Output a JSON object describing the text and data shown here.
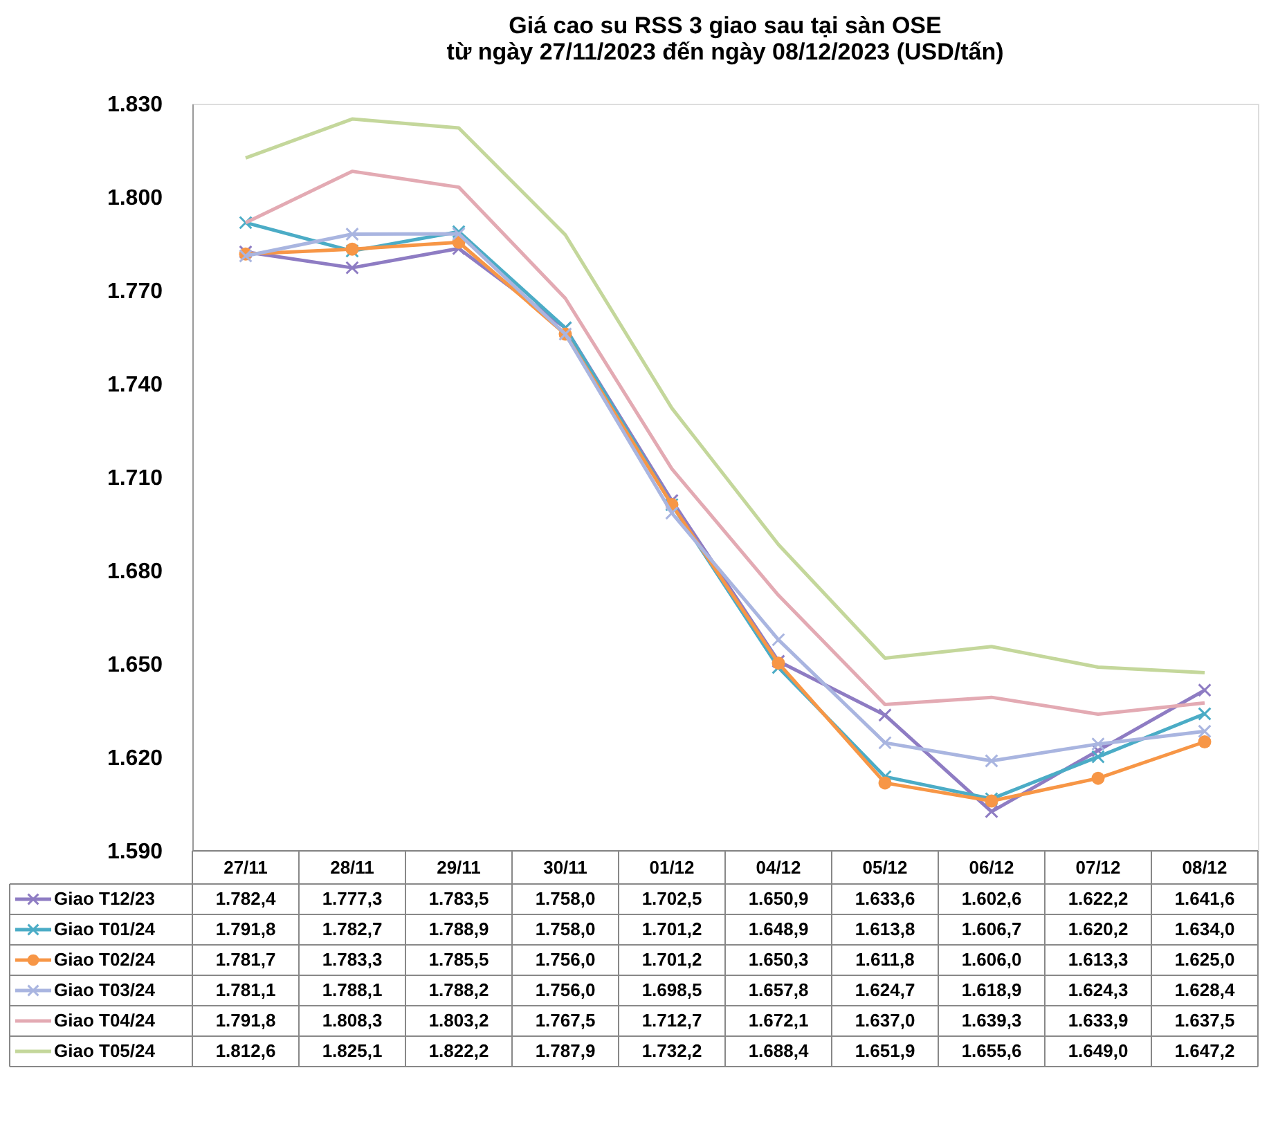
{
  "chart_data": {
    "type": "line",
    "title": "Giá cao su RSS 3 giao sau tại sàn OSE",
    "subtitle": "từ ngày 27/11/2023 đến ngày 08/12/2023 (USD/tấn)",
    "categories": [
      "27/11",
      "28/11",
      "29/11",
      "30/11",
      "01/12",
      "04/12",
      "05/12",
      "06/12",
      "07/12",
      "08/12"
    ],
    "ylim": [
      1590,
      1830
    ],
    "yticks": [
      {
        "value": 1590,
        "label": "1.590"
      },
      {
        "value": 1620,
        "label": "1.620"
      },
      {
        "value": 1650,
        "label": "1.650"
      },
      {
        "value": 1680,
        "label": "1.680"
      },
      {
        "value": 1710,
        "label": "1.710"
      },
      {
        "value": 1740,
        "label": "1.740"
      },
      {
        "value": 1770,
        "label": "1.770"
      },
      {
        "value": 1800,
        "label": "1.800"
      },
      {
        "value": 1830,
        "label": "1.830"
      }
    ],
    "grid": false,
    "legend": "bottom",
    "line_style": "solid",
    "series": [
      {
        "name": "Giao T12/23",
        "color": "#8e7cc3",
        "marker": "cross",
        "values": [
          1782.4,
          1777.3,
          1783.5,
          1758.0,
          1702.5,
          1650.9,
          1633.6,
          1602.6,
          1622.2,
          1641.6
        ],
        "value_labels": [
          "1.782,4",
          "1.777,3",
          "1.783,5",
          "1.758,0",
          "1.702,5",
          "1.650,9",
          "1.633,6",
          "1.602,6",
          "1.622,2",
          "1.641,6"
        ]
      },
      {
        "name": "Giao T01/24",
        "color": "#4bacc6",
        "marker": "cross",
        "values": [
          1791.8,
          1782.7,
          1788.9,
          1758.0,
          1701.2,
          1648.9,
          1613.8,
          1606.7,
          1620.2,
          1634.0
        ],
        "value_labels": [
          "1.791,8",
          "1.782,7",
          "1.788,9",
          "1.758,0",
          "1.701,2",
          "1.648,9",
          "1.613,8",
          "1.606,7",
          "1.620,2",
          "1.634,0"
        ]
      },
      {
        "name": "Giao T02/24",
        "color": "#f79646",
        "marker": "circle",
        "values": [
          1781.7,
          1783.3,
          1785.5,
          1756.0,
          1701.2,
          1650.3,
          1611.8,
          1606.0,
          1613.3,
          1625.0
        ],
        "value_labels": [
          "1.781,7",
          "1.783,3",
          "1.785,5",
          "1.756,0",
          "1.701,2",
          "1.650,3",
          "1.611,8",
          "1.606,0",
          "1.613,3",
          "1.625,0"
        ]
      },
      {
        "name": "Giao T03/24",
        "color": "#a9b5e0",
        "marker": "cross",
        "values": [
          1781.1,
          1788.1,
          1788.2,
          1756.0,
          1698.5,
          1657.8,
          1624.7,
          1618.9,
          1624.3,
          1628.4
        ],
        "value_labels": [
          "1.781,1",
          "1.788,1",
          "1.788,2",
          "1.756,0",
          "1.698,5",
          "1.657,8",
          "1.624,7",
          "1.618,9",
          "1.624,3",
          "1.628,4"
        ]
      },
      {
        "name": "Giao T04/24",
        "color": "#e3aab3",
        "marker": "none",
        "values": [
          1791.8,
          1808.3,
          1803.2,
          1767.5,
          1712.7,
          1672.1,
          1637.0,
          1639.3,
          1633.9,
          1637.5
        ],
        "value_labels": [
          "1.791,8",
          "1.808,3",
          "1.803,2",
          "1.767,5",
          "1.712,7",
          "1.672,1",
          "1.637,0",
          "1.639,3",
          "1.633,9",
          "1.637,5"
        ]
      },
      {
        "name": "Giao T05/24",
        "color": "#c4d79b",
        "marker": "none",
        "values": [
          1812.6,
          1825.1,
          1822.2,
          1787.9,
          1732.2,
          1688.4,
          1651.9,
          1655.6,
          1649.0,
          1647.2
        ],
        "value_labels": [
          "1.812,6",
          "1.825,1",
          "1.822,2",
          "1.787,9",
          "1.732,2",
          "1.688,4",
          "1.651,9",
          "1.655,6",
          "1.649,0",
          "1.647,2"
        ]
      }
    ]
  }
}
